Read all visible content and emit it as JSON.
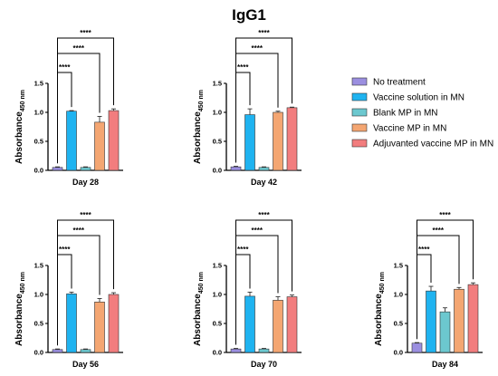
{
  "figure_title": "IgG1",
  "legend": {
    "items": [
      {
        "label": "No treatment",
        "color": "#9b8fe0"
      },
      {
        "label": "Vaccine solution in MN",
        "color": "#1fb3f0"
      },
      {
        "label": "Blank MP in MN",
        "color": "#6cc8cf"
      },
      {
        "label": "Vaccine MP in MN",
        "color": "#f4a672"
      },
      {
        "label": "Adjuvanted vaccine MP in MN",
        "color": "#f27d7e"
      }
    ]
  },
  "chart_data": [
    {
      "type": "bar",
      "title": "",
      "xlabel": "Day 28",
      "ylabel": "Absorbance",
      "ylabel_sub": "450 nm",
      "ylim": [
        0,
        1.5
      ],
      "yticks": [
        "0.0",
        "0.5",
        "1.0",
        "1.5"
      ],
      "categories": [
        "No treatment",
        "Vaccine solution in MN",
        "Blank MP in MN",
        "Vaccine MP in MN",
        "Adjuvanted vaccine MP in MN"
      ],
      "values": [
        0.05,
        1.02,
        0.05,
        0.83,
        1.03
      ],
      "errors": [
        0.01,
        0.01,
        0.01,
        0.1,
        0.03
      ],
      "significance": [
        {
          "from": 0,
          "to": 1,
          "label": "****"
        },
        {
          "from": 0,
          "to": 3,
          "label": "****"
        },
        {
          "from": 0,
          "to": 4,
          "label": "****"
        }
      ]
    },
    {
      "type": "bar",
      "title": "",
      "xlabel": "Day 42",
      "ylabel": "Absorbance",
      "ylabel_sub": "450 nm",
      "ylim": [
        0,
        1.5
      ],
      "yticks": [
        "0.0",
        "0.5",
        "1.0",
        "1.5"
      ],
      "categories": [
        "No treatment",
        "Vaccine solution in MN",
        "Blank MP in MN",
        "Vaccine MP in MN",
        "Adjuvanted vaccine MP in MN"
      ],
      "values": [
        0.06,
        0.96,
        0.05,
        1.0,
        1.08
      ],
      "errors": [
        0.01,
        0.1,
        0.01,
        0.02,
        0.01
      ],
      "significance": [
        {
          "from": 0,
          "to": 1,
          "label": "****"
        },
        {
          "from": 0,
          "to": 3,
          "label": "****"
        },
        {
          "from": 0,
          "to": 4,
          "label": "****"
        }
      ]
    },
    {
      "type": "bar",
      "title": "",
      "xlabel": "Day 56",
      "ylabel": "Absorbance",
      "ylabel_sub": "450 nm",
      "ylim": [
        0,
        1.5
      ],
      "yticks": [
        "0.0",
        "0.5",
        "1.0",
        "1.5"
      ],
      "categories": [
        "No treatment",
        "Vaccine solution in MN",
        "Blank MP in MN",
        "Vaccine MP in MN",
        "Adjuvanted vaccine MP in MN"
      ],
      "values": [
        0.05,
        1.01,
        0.05,
        0.87,
        1.0
      ],
      "errors": [
        0.01,
        0.03,
        0.01,
        0.06,
        0.03
      ],
      "significance": [
        {
          "from": 0,
          "to": 1,
          "label": "****"
        },
        {
          "from": 0,
          "to": 3,
          "label": "****"
        },
        {
          "from": 0,
          "to": 4,
          "label": "****"
        }
      ]
    },
    {
      "type": "bar",
      "title": "",
      "xlabel": "Day 70",
      "ylabel": "Absorbance",
      "ylabel_sub": "450 nm",
      "ylim": [
        0,
        1.5
      ],
      "yticks": [
        "0.0",
        "0.5",
        "1.0",
        "1.5"
      ],
      "categories": [
        "No treatment",
        "Vaccine solution in MN",
        "Blank MP in MN",
        "Vaccine MP in MN",
        "Adjuvanted vaccine MP in MN"
      ],
      "values": [
        0.06,
        0.97,
        0.06,
        0.9,
        0.96
      ],
      "errors": [
        0.01,
        0.07,
        0.01,
        0.06,
        0.03
      ],
      "significance": [
        {
          "from": 0,
          "to": 1,
          "label": "****"
        },
        {
          "from": 0,
          "to": 3,
          "label": "****"
        },
        {
          "from": 0,
          "to": 4,
          "label": "****"
        }
      ]
    },
    {
      "type": "bar",
      "title": "",
      "xlabel": "Day 84",
      "ylabel": "Absorbance",
      "ylabel_sub": "450 nm",
      "ylim": [
        0,
        1.5
      ],
      "yticks": [
        "0.0",
        "0.5",
        "1.0",
        "1.5"
      ],
      "categories": [
        "No treatment",
        "Vaccine solution in MN",
        "Blank MP in MN",
        "Vaccine MP in MN",
        "Adjuvanted vaccine MP in MN"
      ],
      "values": [
        0.16,
        1.06,
        0.7,
        1.09,
        1.17
      ],
      "errors": [
        0.01,
        0.08,
        0.07,
        0.03,
        0.03
      ],
      "significance": [
        {
          "from": 0,
          "to": 1,
          "label": "****"
        },
        {
          "from": 0,
          "to": 3,
          "label": "****"
        },
        {
          "from": 0,
          "to": 4,
          "label": "****"
        }
      ]
    }
  ]
}
